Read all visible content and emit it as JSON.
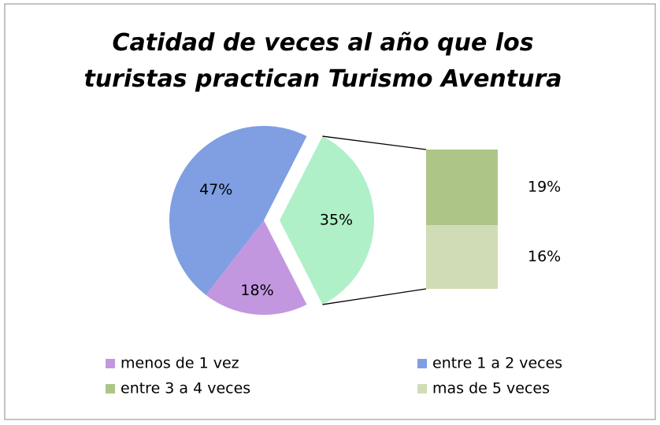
{
  "chart_data": {
    "type": "bar-of-pie",
    "title": "Catidad de veces al año que los turistas practican Turismo Aventura",
    "pie": [
      {
        "value": 35,
        "value_label": "35%",
        "color": "#aff0c8"
      },
      {
        "name": "menos de 1 vez",
        "value": 18,
        "value_label": "18%",
        "color": "#c397e0"
      },
      {
        "name": "entre 1  a 2 veces",
        "value": 47,
        "value_label": "47%",
        "color": "#7f9fe2"
      }
    ],
    "bar": [
      {
        "name": "entre 3 a 4 veces",
        "value": 19,
        "value_label": "19%",
        "color": "#adc687"
      },
      {
        "name": "mas de 5 veces",
        "value": 16,
        "value_label": "16%",
        "color": "#d0dcb5"
      }
    ]
  }
}
